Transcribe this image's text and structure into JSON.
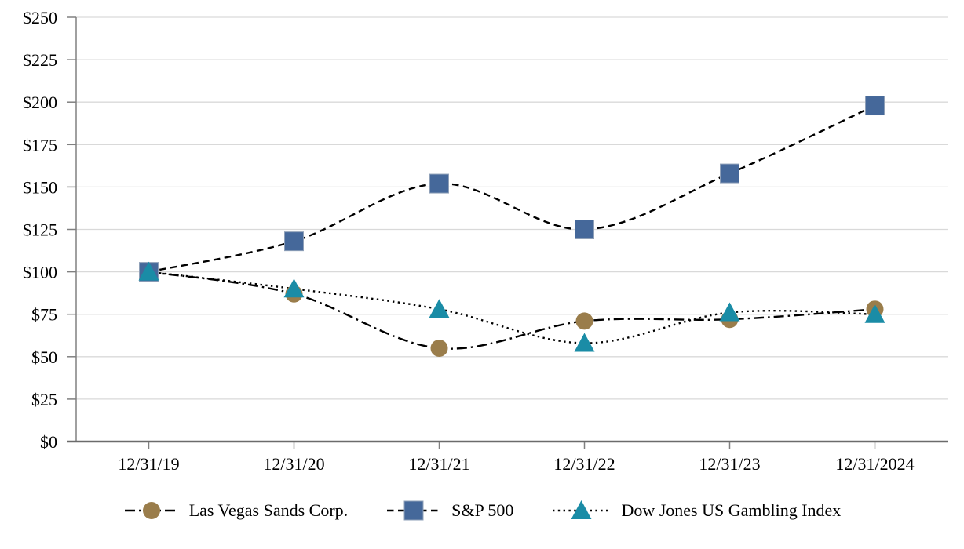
{
  "chart_data": {
    "type": "line",
    "title": "",
    "xlabel": "",
    "ylabel": "",
    "categories": [
      "12/31/19",
      "12/31/20",
      "12/31/21",
      "12/31/22",
      "12/31/23",
      "12/31/2024"
    ],
    "series": [
      {
        "name": "Las Vegas Sands Corp.",
        "values": [
          100,
          87,
          55,
          71,
          72,
          78
        ],
        "marker": "circle",
        "marker_color": "#9A7D4B",
        "line_color": "#000000",
        "line_style": "dash-dot"
      },
      {
        "name": "S&P 500",
        "values": [
          100,
          118,
          152,
          125,
          158,
          198
        ],
        "marker": "square",
        "marker_color": "#45689A",
        "line_color": "#000000",
        "line_style": "dashed"
      },
      {
        "name": "Dow Jones US Gambling Index",
        "values": [
          100,
          90,
          78,
          58,
          76,
          75
        ],
        "marker": "triangle",
        "marker_color": "#1A8CA6",
        "line_color": "#000000",
        "line_style": "dotted"
      }
    ],
    "ylim": [
      0,
      250
    ],
    "ytick_step": 25,
    "y_tick_labels": [
      "$0",
      "$25",
      "$50",
      "$75",
      "$100",
      "$125",
      "$150",
      "$175",
      "$200",
      "$225",
      "$250"
    ],
    "currency_prefix": "$",
    "grid": "horizontal",
    "smooth": true,
    "legend_position": "bottom",
    "colors": {
      "grid_color": "#D9D9D9",
      "y_axis_color": "#808080",
      "x_axis_color": "#6B6B6B",
      "tick_color": "#808080",
      "text_color": "#000000",
      "background": "#FFFFFF"
    }
  }
}
